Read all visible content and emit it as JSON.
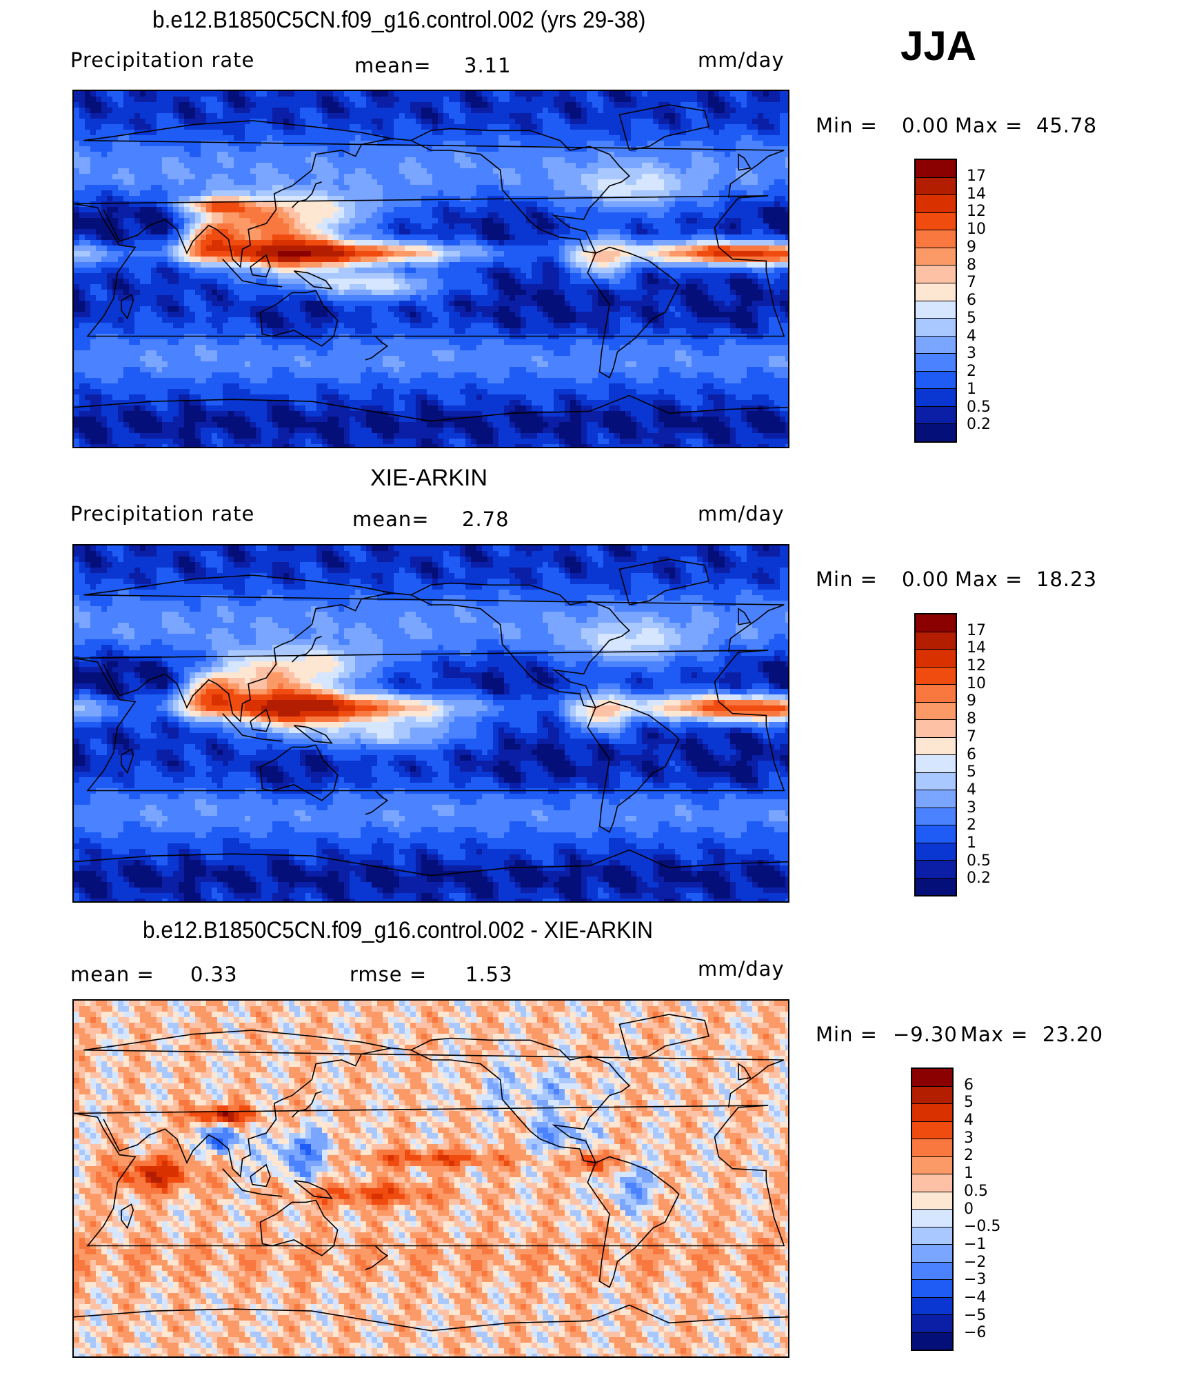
{
  "season": "JJA",
  "panels": [
    {
      "title": "b.e12.B1850C5CN.f09_g16.control.002 (yrs 29-38)",
      "variable": "Precipitation rate",
      "stat1_label": "mean=",
      "stat1_value": "3.11",
      "units": "mm/day",
      "min_label": "Min =",
      "min_value": "0.00",
      "max_label": "Max =",
      "max_value": "45.78",
      "colorbar": {
        "levels": [
          "17",
          "14",
          "12",
          "10",
          "9",
          "8",
          "7",
          "6",
          "5",
          "4",
          "3",
          "2",
          "1",
          "0.5",
          "0.2"
        ],
        "colors": [
          "#8b0000",
          "#b41e00",
          "#d93200",
          "#f04c10",
          "#f97840",
          "#fb9a66",
          "#fdc2a6",
          "#fde6d2",
          "#d6e6ff",
          "#a8c8ff",
          "#7aa6ff",
          "#4a82ff",
          "#1e5cf5",
          "#0a36d2",
          "#0a1fa6",
          "#050f7a"
        ]
      },
      "field_type": "precip_model"
    },
    {
      "title": "XIE-ARKIN",
      "variable": "Precipitation rate",
      "stat1_label": "mean=",
      "stat1_value": "2.78",
      "units": "mm/day",
      "min_label": "Min =",
      "min_value": "0.00",
      "max_label": "Max =",
      "max_value": "18.23",
      "colorbar": {
        "levels": [
          "17",
          "14",
          "12",
          "10",
          "9",
          "8",
          "7",
          "6",
          "5",
          "4",
          "3",
          "2",
          "1",
          "0.5",
          "0.2"
        ],
        "colors": [
          "#8b0000",
          "#b41e00",
          "#d93200",
          "#f04c10",
          "#f97840",
          "#fb9a66",
          "#fdc2a6",
          "#fde6d2",
          "#d6e6ff",
          "#a8c8ff",
          "#7aa6ff",
          "#4a82ff",
          "#1e5cf5",
          "#0a36d2",
          "#0a1fa6",
          "#050f7a"
        ]
      },
      "field_type": "precip_obs"
    },
    {
      "title": "b.e12.B1850C5CN.f09_g16.control.002 - XIE-ARKIN",
      "stat1_label": "mean =",
      "stat1_value": "0.33",
      "stat2_label": "rmse =",
      "stat2_value": "1.53",
      "units": "mm/day",
      "min_label": "Min =",
      "min_value": "−9.30",
      "max_label": "Max =",
      "max_value": "23.20",
      "colorbar": {
        "levels": [
          "6",
          "5",
          "4",
          "3",
          "2",
          "1",
          "0.5",
          "0",
          "−0.5",
          "−1",
          "−2",
          "−3",
          "−4",
          "−5",
          "−6"
        ],
        "colors": [
          "#8b0000",
          "#b41e00",
          "#d93200",
          "#f04c10",
          "#f97840",
          "#fb9a66",
          "#fdc2a6",
          "#fde6d2",
          "#d6e6ff",
          "#a8c8ff",
          "#7aa6ff",
          "#4a82ff",
          "#1e5cf5",
          "#0a36d2",
          "#0a1fa6",
          "#050f7a"
        ]
      },
      "field_type": "difference"
    }
  ]
}
